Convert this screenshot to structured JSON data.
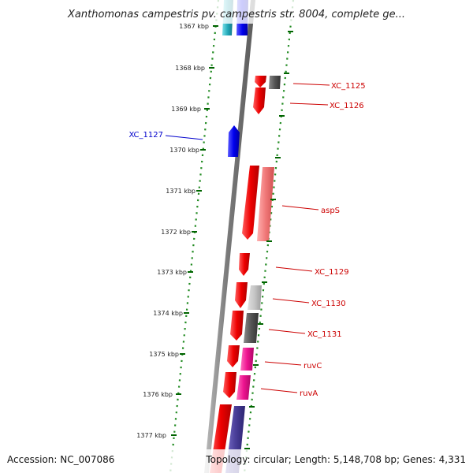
{
  "header": {
    "title": "Xanthomonas campestris pv. campestris str. 8004, complete ge..."
  },
  "footer": {
    "accession": "Accession: NC_007086",
    "topology": "Topology: circular; Length: 5,148,708 bp; Genes: 4,331"
  },
  "ticks": [
    "1367 kbp",
    "1368 kbp",
    "1369 kbp",
    "1370 kbp",
    "1371 kbp",
    "1372 kbp",
    "1373 kbp",
    "1374 kbp",
    "1375 kbp",
    "1376 kbp",
    "1377 kbp"
  ],
  "genes": [
    {
      "label": "XC_1125",
      "color": "#cc0000"
    },
    {
      "label": "XC_1126",
      "color": "#cc0000"
    },
    {
      "label": "XC_1127",
      "color": "#0000cc"
    },
    {
      "label": "aspS",
      "color": "#cc0000"
    },
    {
      "label": "XC_1129",
      "color": "#cc0000"
    },
    {
      "label": "XC_1130",
      "color": "#cc0000"
    },
    {
      "label": "XC_1131",
      "color": "#cc0000"
    },
    {
      "label": "ruvC",
      "color": "#cc0000"
    },
    {
      "label": "ruvA",
      "color": "#cc0000"
    }
  ]
}
